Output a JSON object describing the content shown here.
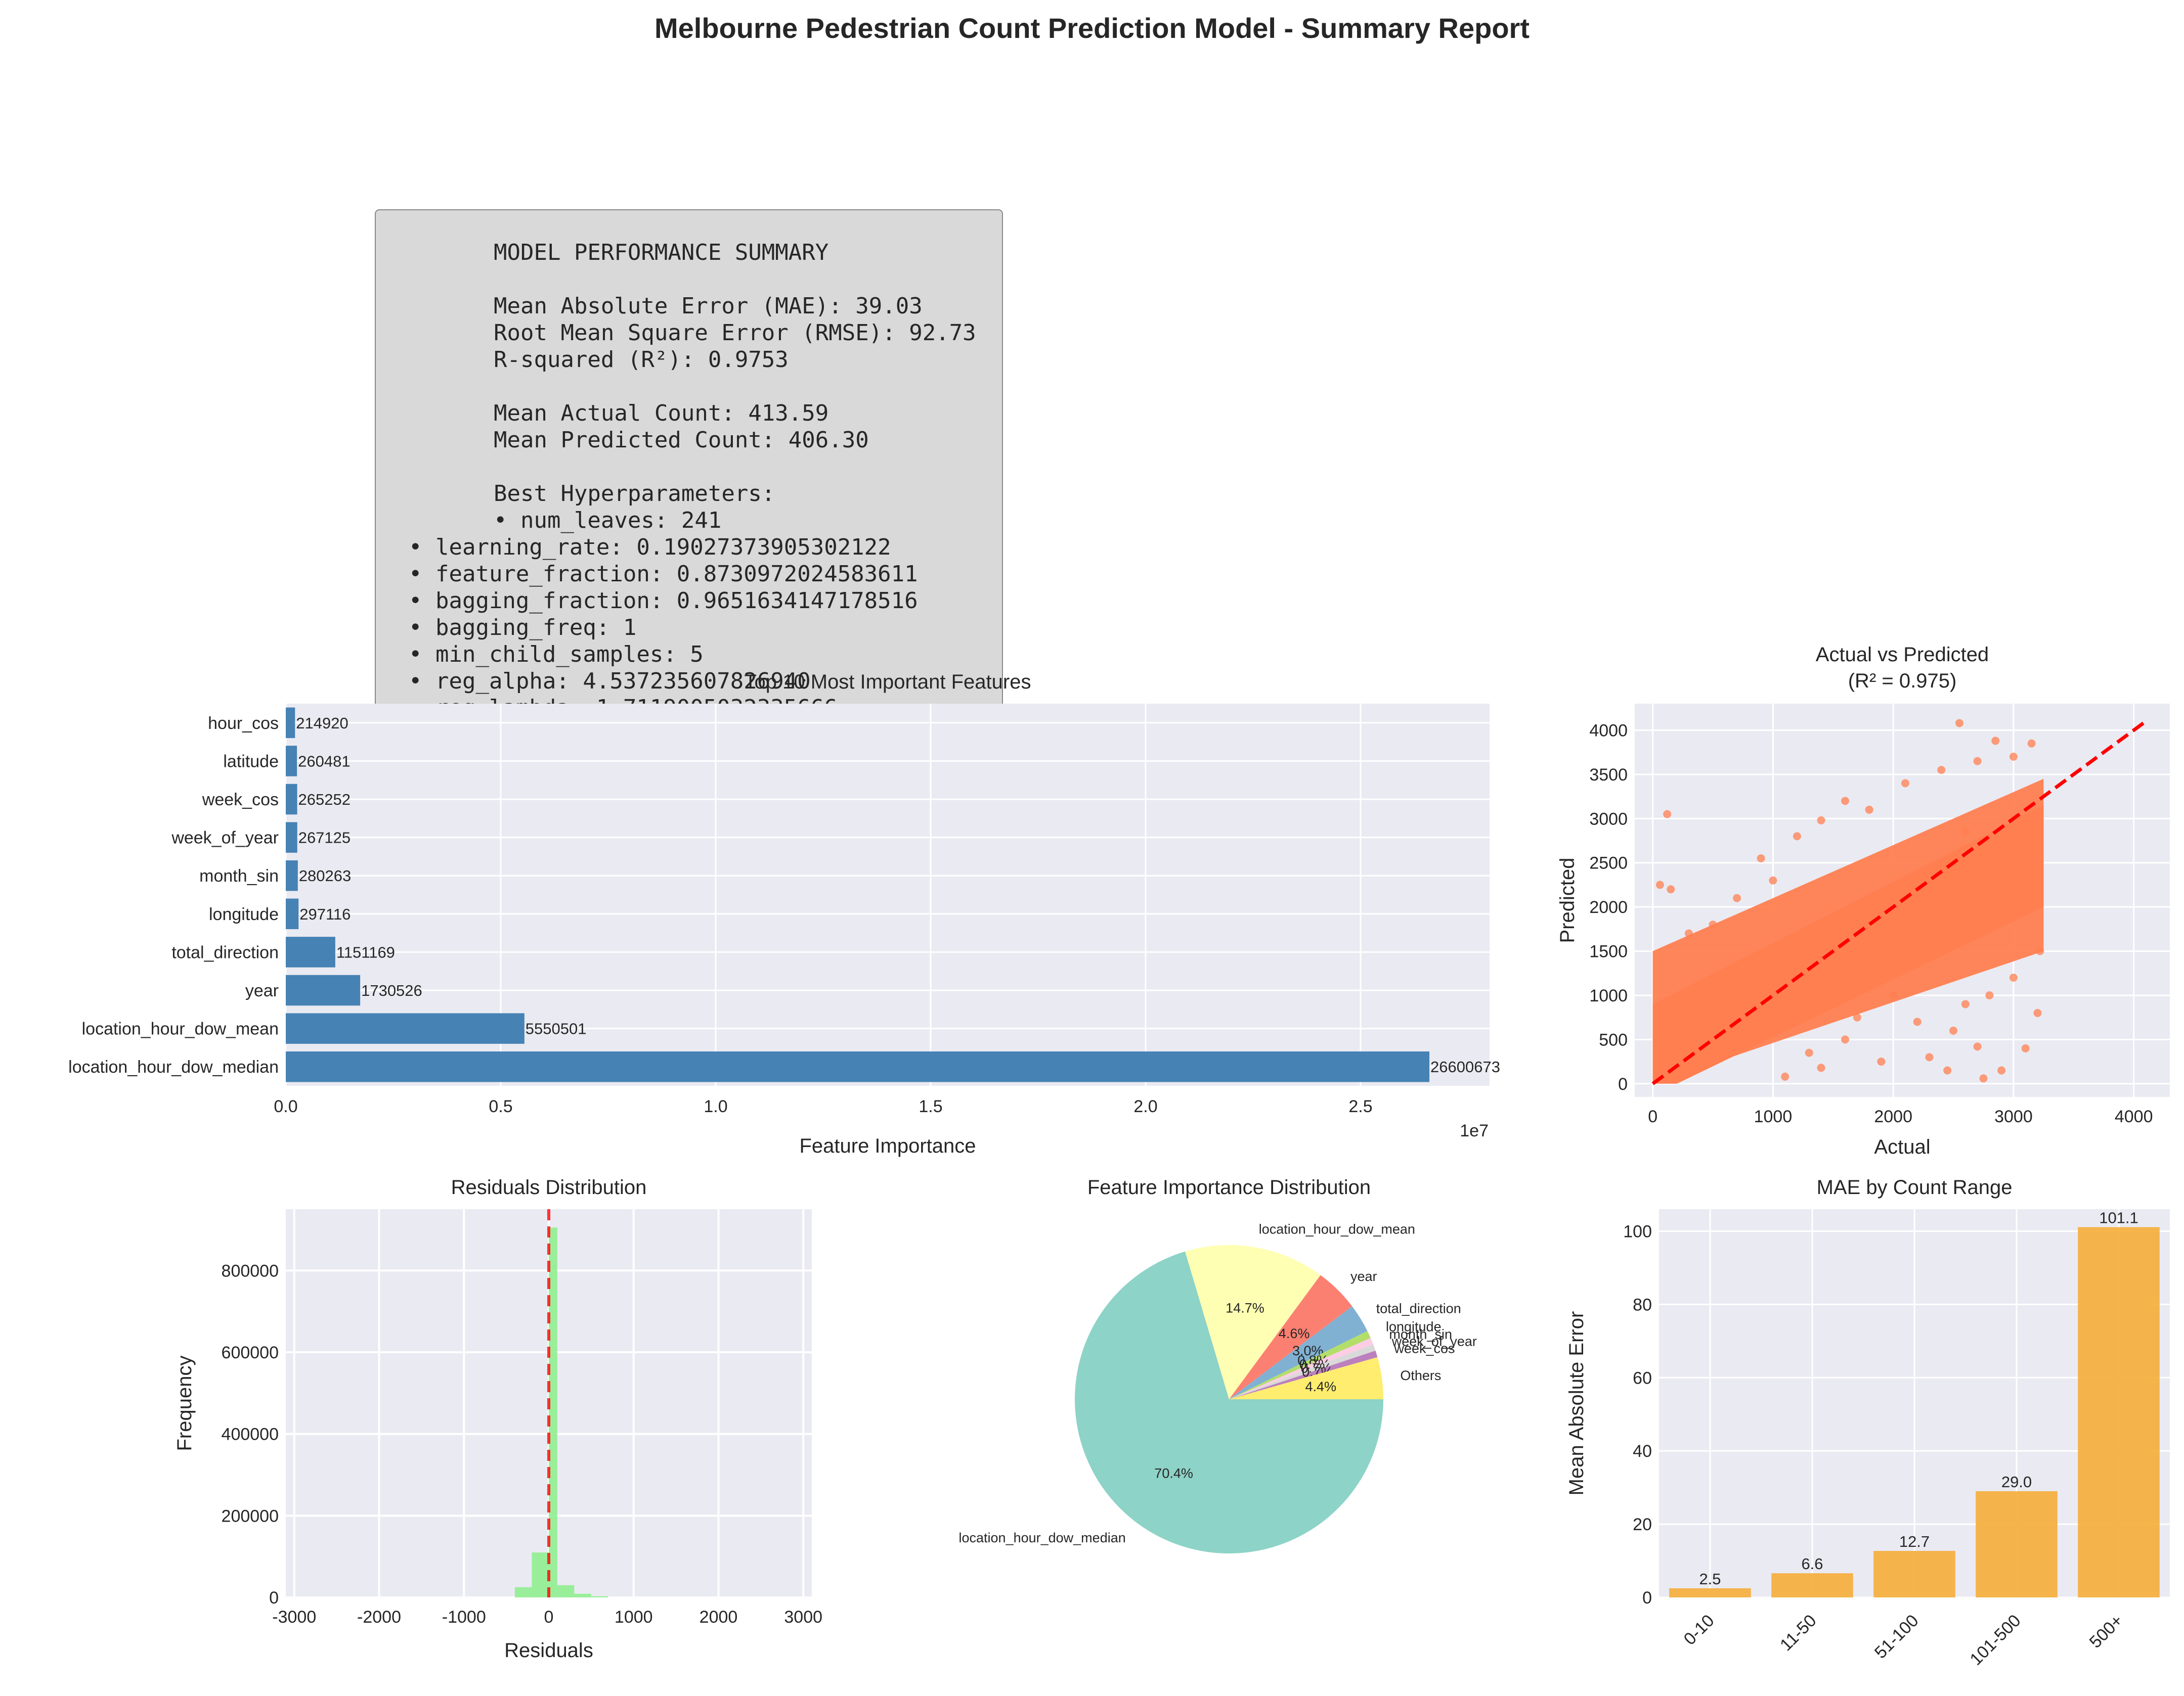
{
  "title": "Melbourne Pedestrian Count Prediction Model - Summary Report",
  "summary_box": {
    "lines": [
      "MODEL PERFORMANCE SUMMARY",
      "",
      "Mean Absolute Error (MAE): 39.03",
      "Root Mean Square Error (RMSE): 92.73",
      "R-squared (R²): 0.9753",
      "",
      "Mean Actual Count: 413.59",
      "Mean Predicted Count: 406.30",
      "",
      "Best Hyperparameters:",
      "  • num_leaves: 241",
      "• learning_rate: 0.19027373905302122",
      "• feature_fraction: 0.8730972024583611",
      "• bagging_fraction: 0.9651634147178516",
      "• bagging_freq: 1",
      "• min_child_samples: 5",
      "• reg_alpha: 4.537235607826940",
      "• reg_lambda: 1.7119005032335666"
    ],
    "indent": [
      1,
      1,
      1,
      1,
      1,
      1,
      1,
      1,
      1,
      1,
      1,
      0,
      0,
      0,
      0,
      0,
      0,
      0
    ]
  },
  "chart_data": [
    {
      "type": "bar",
      "orientation": "horizontal",
      "title": "Top 10 Most Important Features",
      "xlabel": "Feature Importance",
      "ylabel": "",
      "offset_label": "1e7",
      "categories": [
        "hour_cos",
        "latitude",
        "week_cos",
        "week_of_year",
        "month_sin",
        "longitude",
        "total_direction",
        "year",
        "location_hour_dow_mean",
        "location_hour_dow_median"
      ],
      "values": [
        214920,
        260481,
        265252,
        267125,
        280263,
        297116,
        1151169,
        1730526,
        5550501,
        26600673
      ],
      "xlim": [
        0,
        28000000
      ],
      "xticks": [
        0,
        5000000,
        10000000,
        15000000,
        20000000,
        25000000
      ],
      "xtick_labels": [
        "0.0",
        "0.5",
        "1.0",
        "1.5",
        "2.0",
        "2.5"
      ],
      "color": "#4682b4",
      "grid": true
    },
    {
      "type": "scatter",
      "title": "Actual vs Predicted\n(R² = 0.975)",
      "xlabel": "Actual",
      "ylabel": "Predicted",
      "xlim": [
        -150,
        4300
      ],
      "ylim": [
        -150,
        4300
      ],
      "xticks": [
        0,
        1000,
        2000,
        3000,
        4000
      ],
      "yticks": [
        0,
        500,
        1000,
        1500,
        2000,
        2500,
        3000,
        3500,
        4000
      ],
      "reference_line": [
        [
          0,
          0
        ],
        [
          4100,
          4100
        ]
      ],
      "color": "#ff7f50",
      "line_color": "#ff0000",
      "points": [
        [
          120,
          3050
        ],
        [
          1600,
          3200
        ],
        [
          2550,
          4080
        ],
        [
          2850,
          3880
        ],
        [
          3150,
          3850
        ],
        [
          2600,
          2850
        ],
        [
          2400,
          3550
        ],
        [
          1200,
          2800
        ],
        [
          900,
          2550
        ],
        [
          1400,
          2980
        ],
        [
          2100,
          3400
        ],
        [
          3000,
          3700
        ],
        [
          1800,
          3100
        ],
        [
          2700,
          3650
        ],
        [
          1000,
          2300
        ],
        [
          300,
          1700
        ],
        [
          150,
          2200
        ],
        [
          60,
          2250
        ],
        [
          500,
          1800
        ],
        [
          700,
          2100
        ],
        [
          2200,
          700
        ],
        [
          2500,
          600
        ],
        [
          2700,
          420
        ],
        [
          3100,
          400
        ],
        [
          2900,
          150
        ],
        [
          1900,
          250
        ],
        [
          1600,
          500
        ],
        [
          1400,
          180
        ],
        [
          2600,
          900
        ],
        [
          3200,
          800
        ],
        [
          3000,
          1200
        ],
        [
          2800,
          1000
        ],
        [
          2300,
          300
        ],
        [
          1700,
          750
        ],
        [
          1300,
          350
        ],
        [
          2450,
          150
        ],
        [
          2750,
          60
        ],
        [
          1100,
          80
        ],
        [
          2000,
          1000
        ],
        [
          3220,
          1500
        ]
      ],
      "dense_band": {
        "x_max": 3250,
        "y_top_at_max": 3450,
        "y_bottom_at_max": 1500,
        "y_top_at_zero": 1500,
        "y_bottom_at_zero": 0
      },
      "grid": true
    },
    {
      "type": "histogram",
      "title": "Residuals Distribution",
      "xlabel": "Residuals",
      "ylabel": "Frequency",
      "xlim": [
        -3100,
        3100
      ],
      "ylim": [
        0,
        950000
      ],
      "xticks": [
        -3000,
        -2000,
        -1000,
        0,
        1000,
        2000,
        3000
      ],
      "yticks": [
        0,
        200000,
        400000,
        600000,
        800000
      ],
      "bins": [
        {
          "x0": -400,
          "x1": -200,
          "count": 25000
        },
        {
          "x0": -200,
          "x1": 0,
          "count": 110000
        },
        {
          "x0": 0,
          "x1": 100,
          "count": 905000
        },
        {
          "x0": 100,
          "x1": 300,
          "count": 30000
        },
        {
          "x0": 300,
          "x1": 500,
          "count": 9000
        },
        {
          "x0": 500,
          "x1": 700,
          "count": 3000
        }
      ],
      "color": "#90ee90",
      "vline": 0,
      "vline_color": "#ff0000",
      "grid": true
    },
    {
      "type": "pie",
      "title": "Feature Importance Distribution",
      "slices": [
        {
          "label": "location_hour_dow_median",
          "value": 70.4,
          "pct": "70.4%",
          "color": "#8dd3c7"
        },
        {
          "label": "location_hour_dow_mean",
          "value": 14.7,
          "pct": "14.7%",
          "color": "#ffffb3"
        },
        {
          "label": "year",
          "value": 4.6,
          "pct": "4.6%",
          "color": "#fb8072"
        },
        {
          "label": "total_direction",
          "value": 3.0,
          "pct": "3.0%",
          "color": "#80b1d3"
        },
        {
          "label": "longitude",
          "value": 0.8,
          "pct": "0.8%",
          "color": "#b3de69"
        },
        {
          "label": "month_sin",
          "value": 0.7,
          "pct": "0.7%",
          "color": "#fccde5"
        },
        {
          "label": "week_of_year",
          "value": 0.7,
          "pct": "0.7%",
          "color": "#d9d9d9"
        },
        {
          "label": "week_cos",
          "value": 0.7,
          "pct": "0.7%",
          "color": "#bc80bd"
        },
        {
          "label": "Others",
          "value": 4.4,
          "pct": "4.4%",
          "color": "#ffed6f"
        }
      ]
    },
    {
      "type": "bar",
      "title": "MAE by Count Range",
      "xlabel": "",
      "ylabel": "Mean Absolute Error",
      "categories": [
        "0-10",
        "11-50",
        "51-100",
        "101-500",
        "500+"
      ],
      "values": [
        2.5,
        6.6,
        12.7,
        29.0,
        101.1
      ],
      "value_labels": [
        "2.5",
        "6.6",
        "12.7",
        "29.0",
        "101.1"
      ],
      "ylim": [
        0,
        106
      ],
      "yticks": [
        0,
        20,
        40,
        60,
        80,
        100
      ],
      "color": "#f5b041",
      "grid": true
    }
  ]
}
